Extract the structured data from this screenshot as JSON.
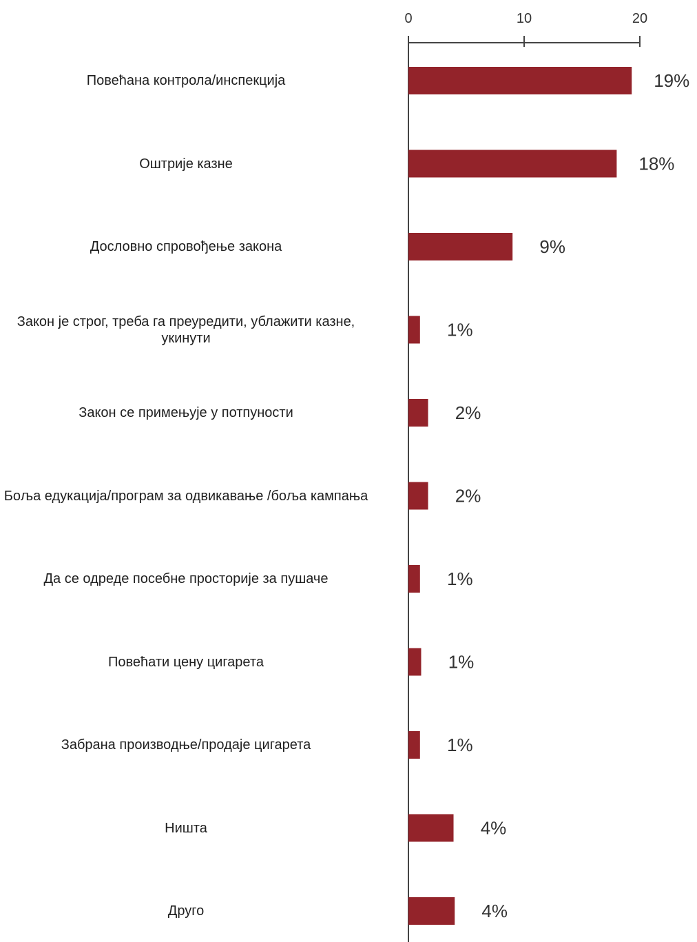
{
  "chart_data": {
    "type": "bar",
    "orientation": "horizontal",
    "categories": [
      "Повећана контрола/инспекција",
      "Оштрије казне",
      "Дословно спровођење закона",
      "Закон је строг, треба га преуредити, ублажити казне, укинути",
      "Закон се примењује у потпуности",
      "Боља едукација/програм за одвикавање /боља кампања",
      "Да се одреде посебне просторије за пушаче",
      "Повећати цену цигарета",
      "Забрана производње/продаје цигарета",
      "Ништа",
      "Друго"
    ],
    "values": [
      19.3,
      18.0,
      9.0,
      1.0,
      1.7,
      1.7,
      1.0,
      1.1,
      1.0,
      3.9,
      4.0
    ],
    "data_labels": [
      "19%",
      "18%",
      "9%",
      "1%",
      "2%",
      "2%",
      "1%",
      "1%",
      "1%",
      "4%",
      "4%"
    ],
    "x_ticks": [
      "0",
      "10",
      "20"
    ],
    "xlim": [
      0,
      20
    ],
    "axis_position": "top",
    "grid": false,
    "legend": "none",
    "bar_color": "#93232a"
  }
}
